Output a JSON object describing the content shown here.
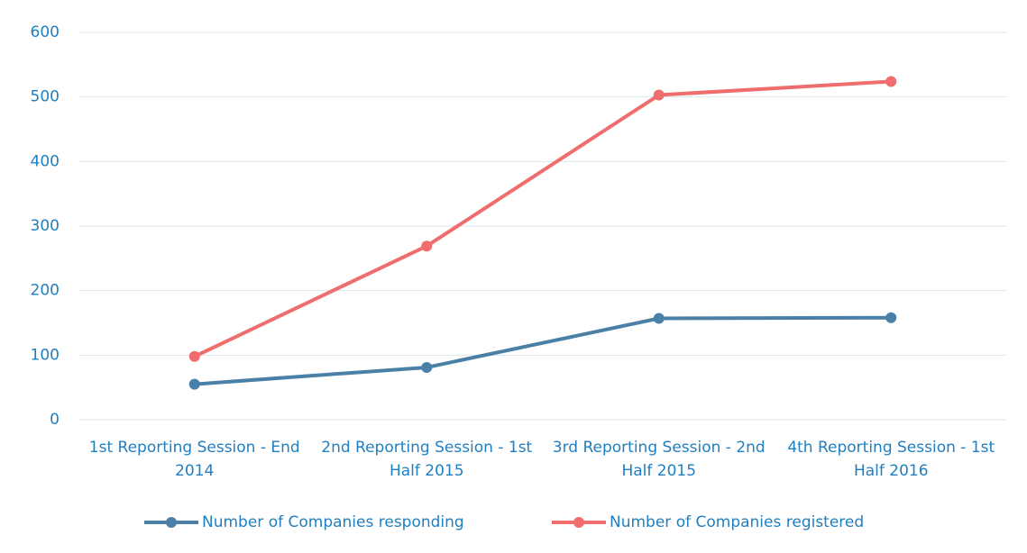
{
  "chart_data": {
    "type": "line",
    "categories": [
      "1st Reporting Session - End 2014",
      "2nd Reporting Session - 1st Half 2015",
      "3rd Reporting Session - 2nd Half 2015",
      "4th Reporting Session - 1st Half 2016"
    ],
    "series": [
      {
        "name": "Number of Companies responding",
        "color": "#4a80a8",
        "values": [
          55,
          81,
          157,
          158
        ]
      },
      {
        "name": "Number of Companies registered",
        "color": "#ef6d6d",
        "values": [
          98,
          269,
          503,
          524
        ]
      }
    ],
    "ylim": [
      0,
      600
    ],
    "yticks": [
      0,
      100,
      200,
      300,
      400,
      500,
      600
    ],
    "grid": true,
    "legend": "bottom"
  }
}
